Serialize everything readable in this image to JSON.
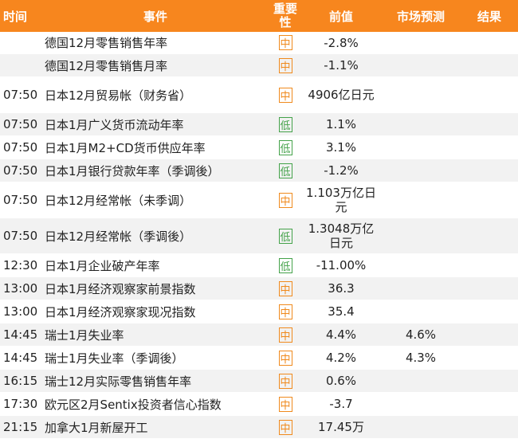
{
  "header": {
    "time": "时间",
    "event": "事件",
    "importance_line1": "重要",
    "importance_line2": "性",
    "previous": "前值",
    "forecast": "市场预测",
    "result": "结果"
  },
  "colors": {
    "header_bg": "#f7861e",
    "mid": "#f08a1d",
    "low": "#44a24a",
    "row_alt": "#f2f2f2"
  },
  "rows": [
    {
      "time": "",
      "event": "德国12月零售销售年率",
      "importance": "中",
      "level": "mid",
      "previous": "-2.8%",
      "forecast": "",
      "result": ""
    },
    {
      "time": "",
      "event": "德国12月零售销售月率",
      "importance": "中",
      "level": "mid",
      "previous": "-1.1%",
      "forecast": "",
      "result": ""
    },
    {
      "time": "07:50",
      "event": "日本12月贸易帐（财务省）",
      "importance": "中",
      "level": "mid",
      "previous": "4906亿日元",
      "forecast": "",
      "result": ""
    },
    {
      "time": "07:50",
      "event": "日本1月广义货币流动年率",
      "importance": "低",
      "level": "low",
      "previous": "1.1%",
      "forecast": "",
      "result": ""
    },
    {
      "time": "07:50",
      "event": "日本1月M2+CD货币供应年率",
      "importance": "低",
      "level": "low",
      "previous": "3.1%",
      "forecast": "",
      "result": ""
    },
    {
      "time": "07:50",
      "event": "日本1月银行贷款年率（季调後）",
      "importance": "低",
      "level": "low",
      "previous": "-1.2%",
      "forecast": "",
      "result": ""
    },
    {
      "time": "07:50",
      "event": "日本12月经常帐（未季调）",
      "importance": "中",
      "level": "mid",
      "previous": "1.103万亿日元",
      "forecast": "",
      "result": ""
    },
    {
      "time": "07:50",
      "event": "日本12月经常帐（季调後）",
      "importance": "低",
      "level": "low",
      "previous": "1.3048万亿日元",
      "forecast": "",
      "result": ""
    },
    {
      "time": "12:30",
      "event": "日本1月企业破产年率",
      "importance": "低",
      "level": "low",
      "previous": "-11.00%",
      "forecast": "",
      "result": ""
    },
    {
      "time": "13:00",
      "event": "日本1月经济观察家前景指数",
      "importance": "中",
      "level": "mid",
      "previous": "36.3",
      "forecast": "",
      "result": ""
    },
    {
      "time": "13:00",
      "event": "日本1月经济观察家现况指数",
      "importance": "中",
      "level": "mid",
      "previous": "35.4",
      "forecast": "",
      "result": ""
    },
    {
      "time": "14:45",
      "event": "瑞士1月失业率",
      "importance": "中",
      "level": "mid",
      "previous": "4.4%",
      "forecast": "4.6%",
      "result": ""
    },
    {
      "time": "14:45",
      "event": "瑞士1月失业率（季调後）",
      "importance": "中",
      "level": "mid",
      "previous": "4.2%",
      "forecast": "4.3%",
      "result": ""
    },
    {
      "time": "16:15",
      "event": "瑞士12月实际零售销售年率",
      "importance": "中",
      "level": "mid",
      "previous": "0.6%",
      "forecast": "",
      "result": ""
    },
    {
      "time": "17:30",
      "event": "欧元区2月Sentix投资者信心指数",
      "importance": "中",
      "level": "mid",
      "previous": "-3.7",
      "forecast": "",
      "result": ""
    },
    {
      "time": "21:15",
      "event": "加拿大1月新屋开工",
      "importance": "中",
      "level": "mid",
      "previous": "17.45万",
      "forecast": "",
      "result": ""
    }
  ]
}
